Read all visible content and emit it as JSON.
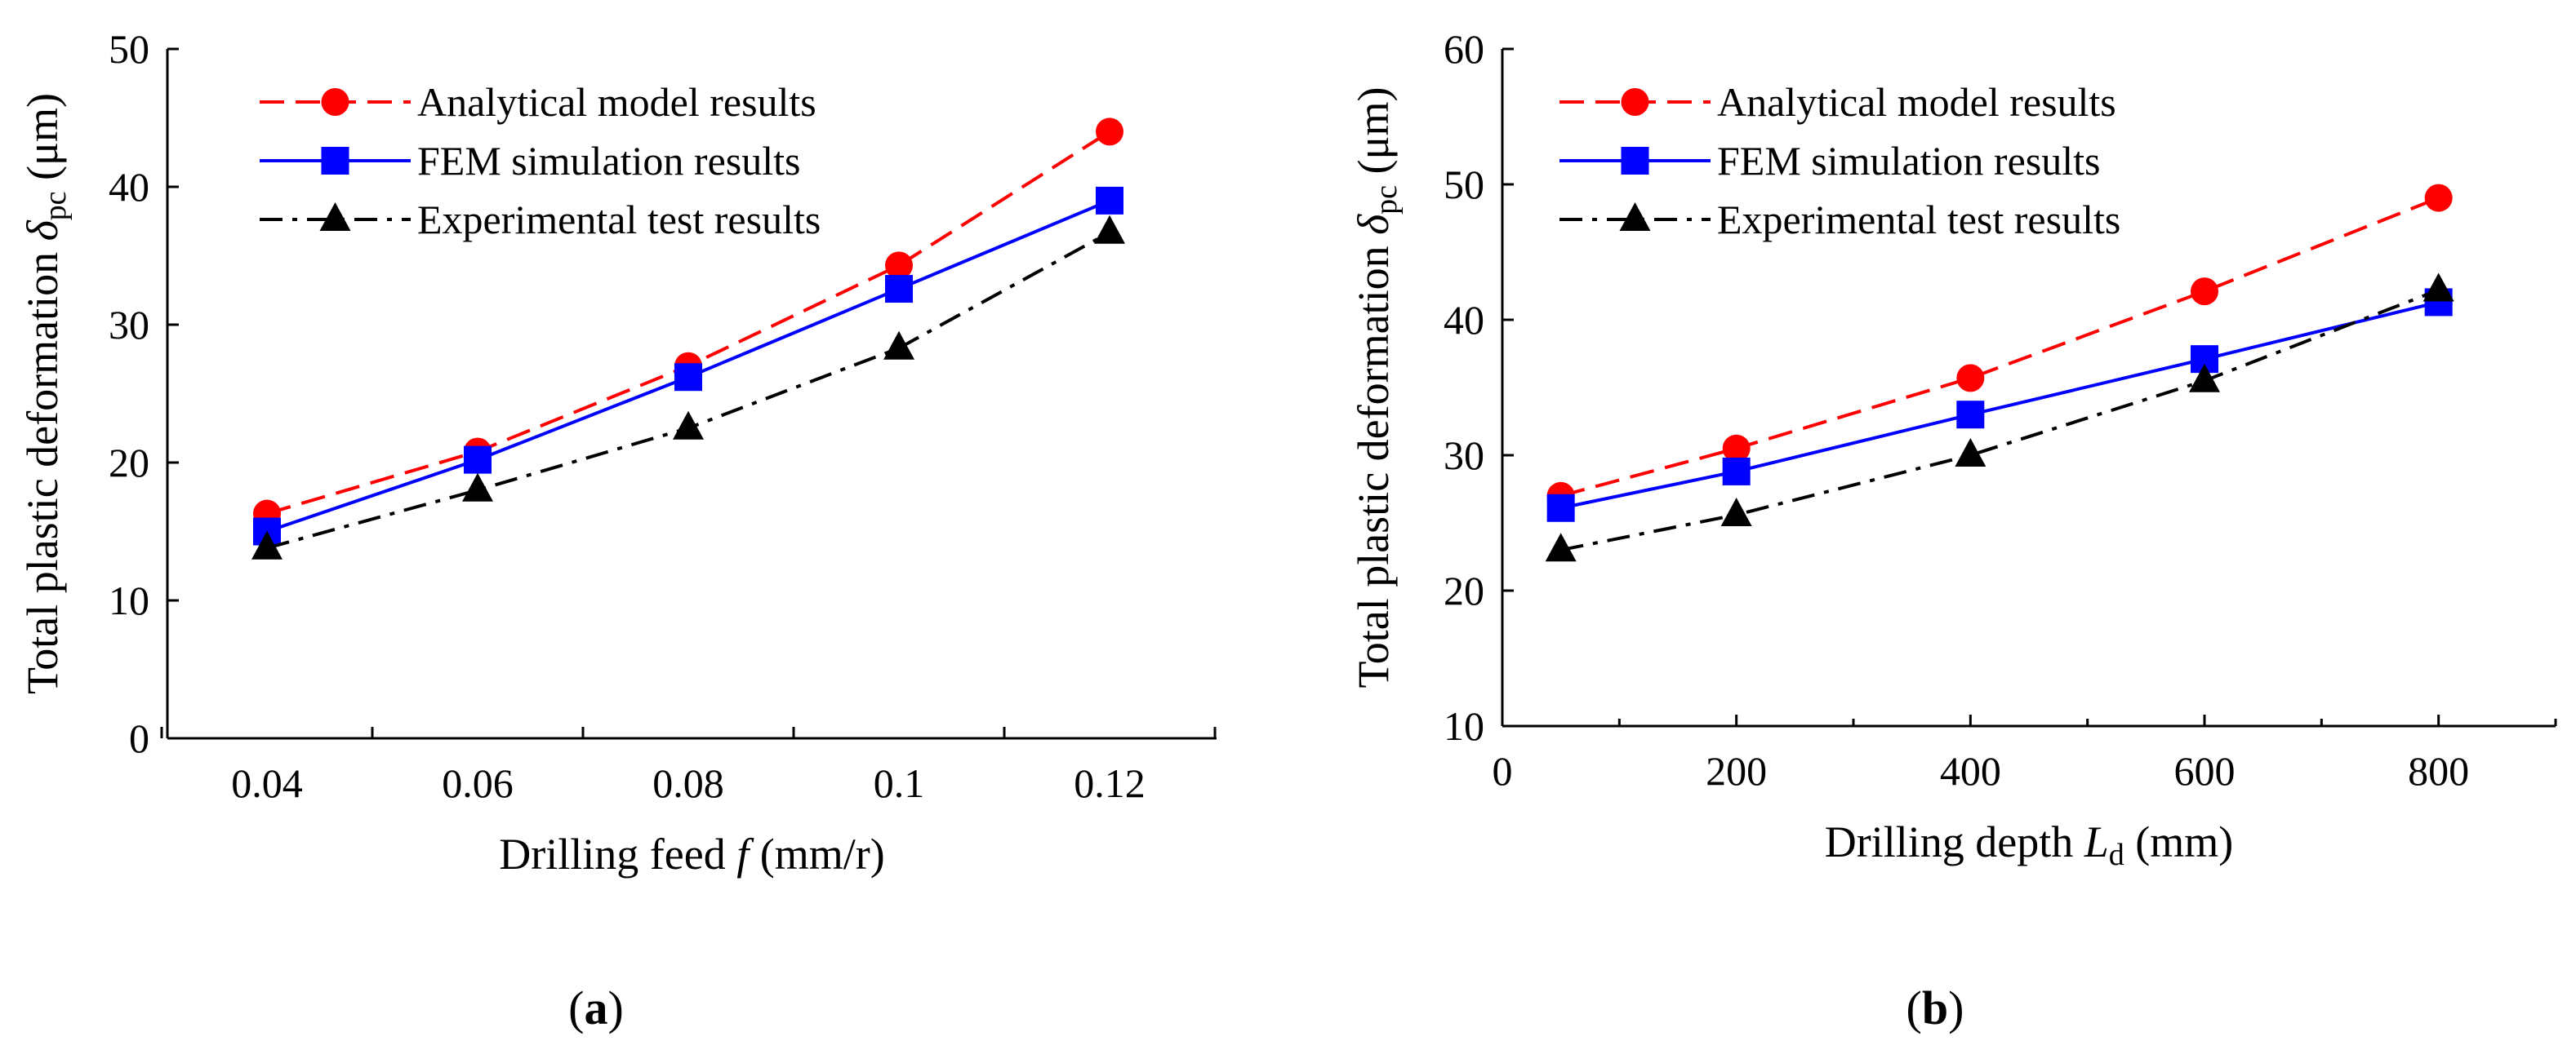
{
  "chart_data": [
    {
      "type": "line",
      "panel_label": "a",
      "xlabel_prefix": "Drilling feed ",
      "xlabel_var": "f",
      "xlabel_suffix": "  (mm/r)",
      "ylabel_prefix": "Total plastic deformation ",
      "ylabel_var": "δ",
      "ylabel_sub": "pc",
      "ylabel_suffix": " (μm)",
      "x_kind": "categorical",
      "categories": [
        "0.04",
        "0.06",
        "0.08",
        "0.1",
        "0.12"
      ],
      "ylim": [
        0,
        50
      ],
      "yticks": [
        "0",
        "10",
        "20",
        "30",
        "40",
        "50"
      ],
      "legend_position": "top-left",
      "series": [
        {
          "name": "Analytical model results",
          "color": "#ff0000",
          "dash": "dashed",
          "marker": "circle",
          "values": [
            16.3,
            20.8,
            27.0,
            34.3,
            44.0
          ]
        },
        {
          "name": "FEM simulation results",
          "color": "#0000ff",
          "dash": "solid",
          "marker": "square",
          "values": [
            15.0,
            20.2,
            26.2,
            32.6,
            39.0
          ]
        },
        {
          "name": "Experimental test results",
          "color": "#000000",
          "dash": "dashdot",
          "marker": "triangle",
          "values": [
            13.8,
            18.0,
            22.5,
            28.3,
            36.7
          ]
        }
      ]
    },
    {
      "type": "line",
      "panel_label": "b",
      "xlabel_prefix": "Drilling depth ",
      "xlabel_var": "L",
      "xlabel_sub": "d",
      "xlabel_suffix": " (mm)",
      "ylabel_prefix": "Total plastic deformation ",
      "ylabel_var": "δ",
      "ylabel_sub": "pc",
      "ylabel_suffix": " (μm)",
      "x_kind": "numeric",
      "x": [
        50,
        200,
        400,
        600,
        800
      ],
      "xlim": [
        0,
        900
      ],
      "xticks": [
        "0",
        "200",
        "400",
        "600",
        "800"
      ],
      "ylim": [
        10,
        60
      ],
      "yticks": [
        "10",
        "20",
        "30",
        "40",
        "50",
        "60"
      ],
      "legend_position": "top-left",
      "series": [
        {
          "name": "Analytical model results",
          "color": "#ff0000",
          "dash": "dashed",
          "marker": "circle",
          "values": [
            27.0,
            30.5,
            35.7,
            42.1,
            49.0
          ]
        },
        {
          "name": "FEM simulation results",
          "color": "#0000ff",
          "dash": "solid",
          "marker": "square",
          "values": [
            26.1,
            28.8,
            33.0,
            37.1,
            41.3
          ]
        },
        {
          "name": "Experimental test results",
          "color": "#000000",
          "dash": "dashdot",
          "marker": "triangle",
          "values": [
            23.0,
            25.6,
            30.0,
            35.5,
            42.2
          ]
        }
      ]
    }
  ]
}
